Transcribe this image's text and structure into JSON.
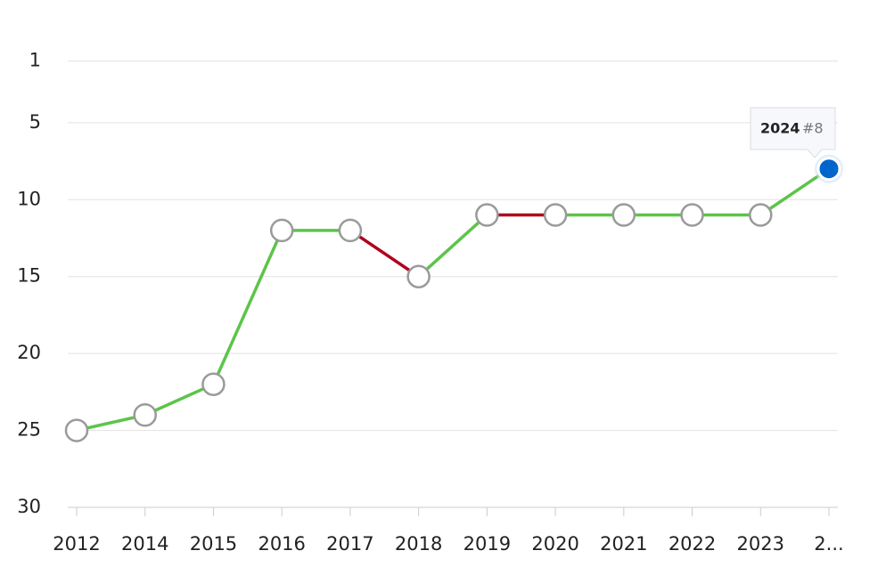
{
  "chart_data": {
    "type": "line",
    "categories": [
      "2012",
      "2014",
      "2015",
      "2016",
      "2017",
      "2018",
      "2019",
      "2020",
      "2021",
      "2022",
      "2023",
      "2..."
    ],
    "values": [
      25,
      24,
      22,
      12,
      12,
      15,
      11,
      11,
      11,
      11,
      11,
      8
    ],
    "segment_colors": [
      "#5cc44a",
      "#5cc44a",
      "#5cc44a",
      "#5cc44a",
      "#b0001e",
      "#5cc44a",
      "#b0001e",
      "#5cc44a",
      "#5cc44a",
      "#5cc44a",
      "#5cc44a"
    ],
    "point_colors": [
      "#ffffff",
      "#ffffff",
      "#ffffff",
      "#ffffff",
      "#ffffff",
      "#ffffff",
      "#ffffff",
      "#ffffff",
      "#ffffff",
      "#ffffff",
      "#ffffff",
      "#0066cc"
    ],
    "ylim": [
      30,
      0
    ],
    "yticks": [
      1,
      5,
      10,
      15,
      20,
      25,
      30
    ],
    "grid": true,
    "tooltip": {
      "title": "2024",
      "text": "#8"
    }
  }
}
